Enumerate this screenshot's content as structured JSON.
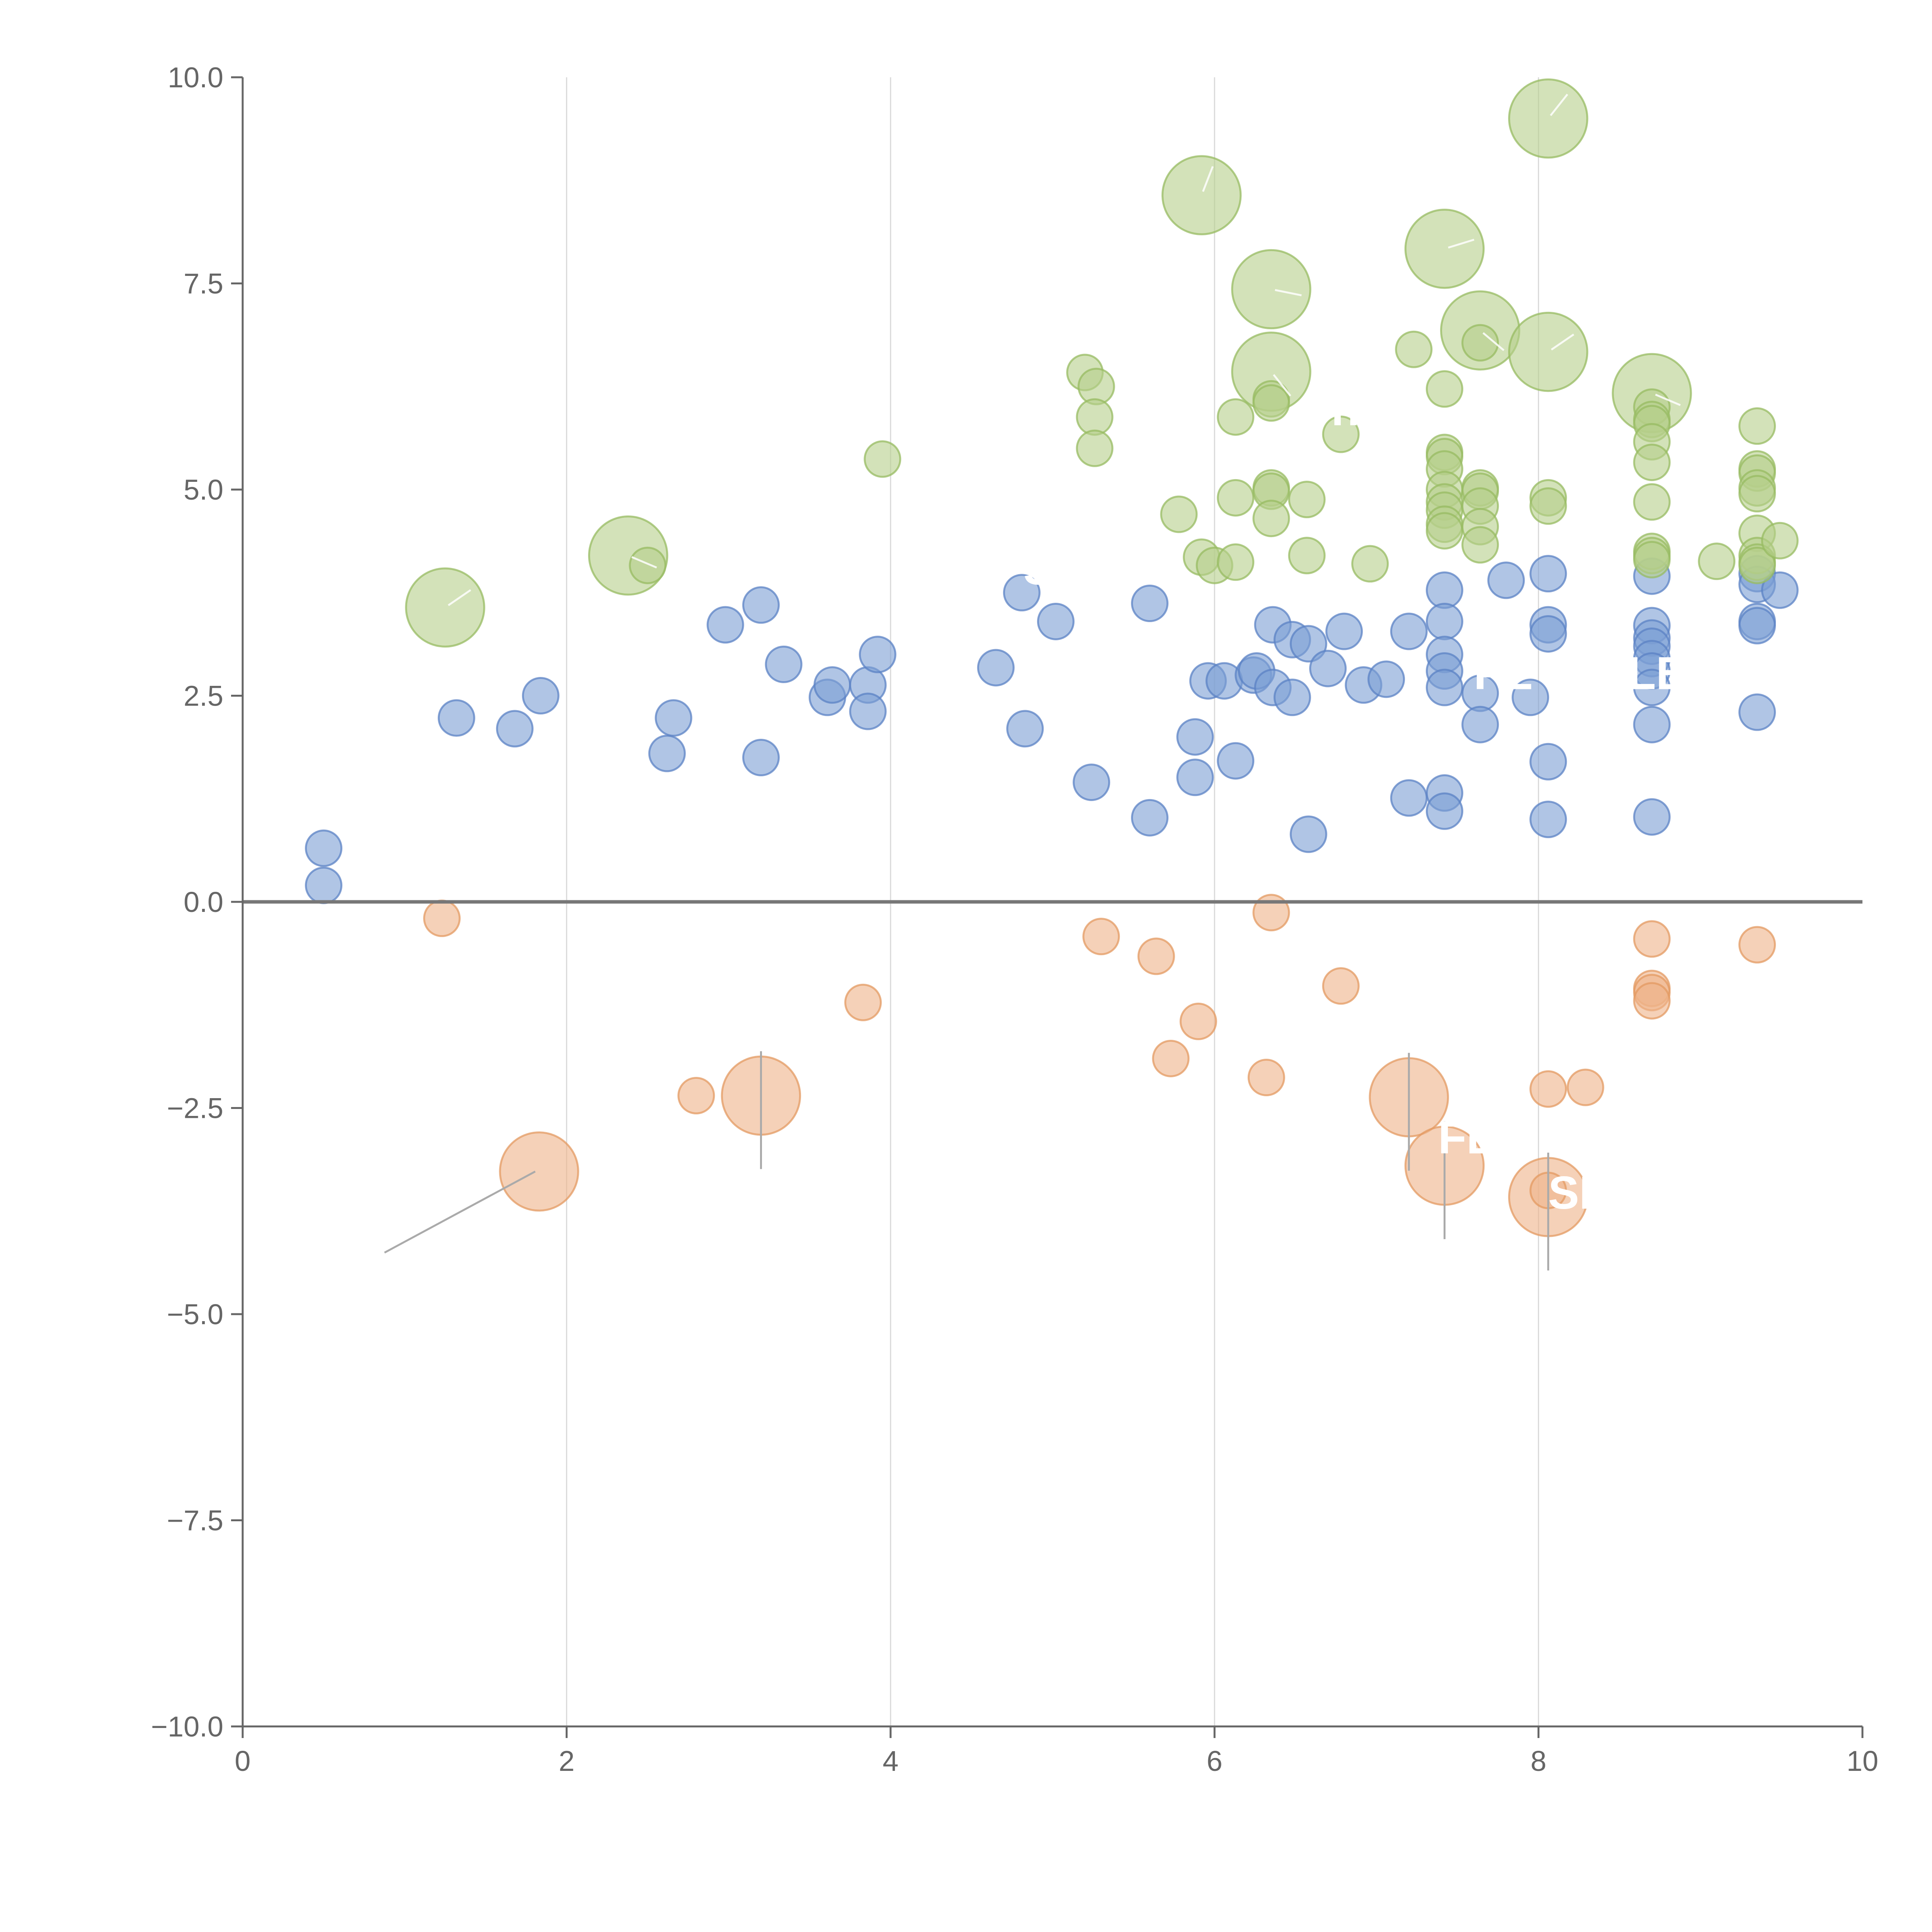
{
  "chart_data": {
    "type": "scatter",
    "title": "",
    "xlabel": "",
    "ylabel": "",
    "xlim": [
      0,
      10
    ],
    "ylim": [
      -10,
      10
    ],
    "x_ticks": [
      0,
      2,
      4,
      6,
      8,
      10
    ],
    "y_ticks": [
      -10,
      -7.5,
      -5,
      -2.5,
      0,
      2.5,
      5,
      7.5,
      10
    ],
    "x_tick_labels": [
      "0",
      "2",
      "4",
      "6",
      "8",
      "10"
    ],
    "y_tick_labels": [
      "−10.0",
      "−7.5",
      "−5.0",
      "−2.5",
      "0.0",
      "2.5",
      "5.0",
      "7.5",
      "10.0"
    ],
    "grid": "x",
    "legend": "none",
    "series": [
      {
        "name": "blue",
        "color": "#7b9fd4",
        "stroke": "#5b82c4",
        "points": [
          [
            0.5,
            0.65,
            1
          ],
          [
            0.5,
            0.2,
            1
          ],
          [
            1.32,
            2.23,
            1
          ],
          [
            1.68,
            2.1,
            1
          ],
          [
            1.84,
            2.5,
            1
          ],
          [
            2.62,
            1.8,
            1
          ],
          [
            2.66,
            2.23,
            1
          ],
          [
            2.98,
            3.36,
            1
          ],
          [
            3.2,
            3.6,
            1
          ],
          [
            3.2,
            1.75,
            1
          ],
          [
            3.34,
            2.88,
            1
          ],
          [
            3.61,
            2.48,
            1
          ],
          [
            3.64,
            2.63,
            1
          ],
          [
            3.86,
            2.63,
            1
          ],
          [
            3.86,
            2.31,
            1
          ],
          [
            3.92,
            3.0,
            1
          ],
          [
            4.65,
            2.84,
            1
          ],
          [
            4.81,
            3.75,
            1
          ],
          [
            4.83,
            2.1,
            1
          ],
          [
            5.02,
            3.4,
            1
          ],
          [
            5.24,
            1.45,
            1
          ],
          [
            5.6,
            1.02,
            1
          ],
          [
            5.6,
            3.62,
            1
          ],
          [
            5.88,
            2.0,
            1
          ],
          [
            5.88,
            1.51,
            1
          ],
          [
            5.96,
            2.68,
            1
          ],
          [
            6.06,
            2.68,
            1
          ],
          [
            6.13,
            1.71,
            1
          ],
          [
            6.24,
            2.75,
            1
          ],
          [
            6.26,
            2.8,
            1
          ],
          [
            6.36,
            3.36,
            1
          ],
          [
            6.36,
            2.6,
            1
          ],
          [
            6.48,
            3.18,
            1
          ],
          [
            6.48,
            2.48,
            1
          ],
          [
            6.58,
            3.13,
            1
          ],
          [
            6.58,
            0.82,
            1
          ],
          [
            6.7,
            2.83,
            1
          ],
          [
            6.8,
            3.28,
            1
          ],
          [
            6.92,
            2.63,
            1
          ],
          [
            7.06,
            2.7,
            1
          ],
          [
            7.2,
            3.28,
            1
          ],
          [
            7.2,
            1.26,
            1
          ],
          [
            7.42,
            3.78,
            1
          ],
          [
            7.42,
            3.4,
            1
          ],
          [
            7.42,
            3.0,
            1
          ],
          [
            7.42,
            2.8,
            1
          ],
          [
            7.42,
            2.6,
            1
          ],
          [
            7.42,
            1.32,
            1
          ],
          [
            7.42,
            1.1,
            1
          ],
          [
            7.64,
            2.53,
            1
          ],
          [
            7.64,
            2.15,
            1
          ],
          [
            7.8,
            3.9,
            1
          ],
          [
            7.95,
            2.48,
            1
          ],
          [
            8.06,
            3.98,
            1
          ],
          [
            8.06,
            3.36,
            1
          ],
          [
            8.06,
            3.25,
            1
          ],
          [
            8.06,
            1.7,
            1
          ],
          [
            8.06,
            1.0,
            1
          ],
          [
            8.7,
            3.95,
            1
          ],
          [
            8.7,
            3.35,
            1
          ],
          [
            8.7,
            3.2,
            1
          ],
          [
            8.7,
            3.1,
            1
          ],
          [
            8.7,
            2.95,
            1
          ],
          [
            8.7,
            2.8,
            1
          ],
          [
            8.7,
            2.6,
            1
          ],
          [
            8.7,
            2.15,
            1
          ],
          [
            8.7,
            1.03,
            1
          ],
          [
            9.35,
            3.98,
            1
          ],
          [
            9.35,
            3.85,
            1
          ],
          [
            9.35,
            3.4,
            1
          ],
          [
            9.35,
            3.35,
            1
          ],
          [
            9.35,
            2.3,
            1
          ],
          [
            9.49,
            3.78,
            1
          ]
        ]
      },
      {
        "name": "green",
        "color": "#b5cf8a",
        "stroke": "#97bb62",
        "points": [
          [
            1.25,
            3.57,
            2.2
          ],
          [
            2.38,
            4.2,
            2.2
          ],
          [
            2.5,
            4.08,
            1
          ],
          [
            3.95,
            5.37,
            1
          ],
          [
            5.2,
            6.42,
            1
          ],
          [
            5.27,
            6.25,
            1
          ],
          [
            5.26,
            5.88,
            1
          ],
          [
            5.26,
            5.5,
            1
          ],
          [
            5.78,
            4.7,
            1
          ],
          [
            5.92,
            8.57,
            2.2
          ],
          [
            5.92,
            4.18,
            1
          ],
          [
            6.0,
            4.08,
            1
          ],
          [
            6.13,
            5.88,
            1
          ],
          [
            6.13,
            4.9,
            1
          ],
          [
            6.13,
            4.12,
            1
          ],
          [
            6.35,
            7.43,
            2.2
          ],
          [
            6.35,
            6.43,
            2.2
          ],
          [
            6.35,
            6.1,
            1
          ],
          [
            6.35,
            6.05,
            1
          ],
          [
            6.35,
            5.02,
            1
          ],
          [
            6.35,
            4.98,
            1
          ],
          [
            6.35,
            4.65,
            1
          ],
          [
            6.57,
            4.88,
            1
          ],
          [
            6.57,
            4.2,
            1
          ],
          [
            6.78,
            5.67,
            1
          ],
          [
            6.96,
            4.1,
            1
          ],
          [
            7.23,
            6.7,
            1
          ],
          [
            7.42,
            7.92,
            2.2
          ],
          [
            7.42,
            6.22,
            1
          ],
          [
            7.42,
            5.45,
            1
          ],
          [
            7.42,
            5.4,
            1
          ],
          [
            7.42,
            5.25,
            1
          ],
          [
            7.42,
            5.0,
            1
          ],
          [
            7.42,
            4.85,
            1
          ],
          [
            7.42,
            4.75,
            1
          ],
          [
            7.42,
            4.58,
            1
          ],
          [
            7.42,
            4.5,
            1
          ],
          [
            7.64,
            6.93,
            2.2
          ],
          [
            7.64,
            6.78,
            1
          ],
          [
            7.64,
            5.02,
            1
          ],
          [
            7.64,
            4.98,
            1
          ],
          [
            7.64,
            4.8,
            1
          ],
          [
            7.64,
            4.55,
            1
          ],
          [
            7.64,
            4.33,
            1
          ],
          [
            8.06,
            9.5,
            2.2
          ],
          [
            8.06,
            6.67,
            2.2
          ],
          [
            8.06,
            4.9,
            1
          ],
          [
            8.06,
            4.8,
            1
          ],
          [
            8.7,
            6.17,
            2.2
          ],
          [
            8.7,
            6.0,
            1
          ],
          [
            8.7,
            5.85,
            1
          ],
          [
            8.7,
            5.8,
            1
          ],
          [
            8.7,
            5.58,
            1
          ],
          [
            8.7,
            5.33,
            1
          ],
          [
            8.7,
            4.85,
            1
          ],
          [
            8.7,
            4.25,
            1
          ],
          [
            8.7,
            4.2,
            1
          ],
          [
            8.7,
            4.15,
            1
          ],
          [
            9.1,
            4.13,
            1
          ],
          [
            9.35,
            5.77,
            1
          ],
          [
            9.35,
            5.25,
            1
          ],
          [
            9.35,
            5.2,
            1
          ],
          [
            9.35,
            5.02,
            1
          ],
          [
            9.35,
            4.95,
            1
          ],
          [
            9.35,
            4.47,
            1
          ],
          [
            9.35,
            4.2,
            1
          ],
          [
            9.35,
            4.12,
            1
          ],
          [
            9.35,
            4.08,
            1
          ],
          [
            9.49,
            4.38,
            1
          ]
        ]
      },
      {
        "name": "orange",
        "color": "#efb288",
        "stroke": "#e39a62",
        "points": [
          [
            1.23,
            -0.2,
            1
          ],
          [
            1.83,
            -3.27,
            2.2
          ],
          [
            2.8,
            -2.35,
            1
          ],
          [
            3.2,
            -2.35,
            2.2
          ],
          [
            3.83,
            -1.22,
            1
          ],
          [
            5.3,
            -0.42,
            1
          ],
          [
            5.64,
            -0.66,
            1
          ],
          [
            5.73,
            -1.9,
            1
          ],
          [
            5.9,
            -1.45,
            1
          ],
          [
            6.32,
            -2.13,
            1
          ],
          [
            6.35,
            -0.13,
            1
          ],
          [
            6.78,
            -1.02,
            1
          ],
          [
            7.2,
            -2.37,
            2.2
          ],
          [
            7.42,
            -3.2,
            2.2
          ],
          [
            8.06,
            -3.58,
            2.2
          ],
          [
            8.06,
            -3.5,
            1
          ],
          [
            8.06,
            -2.27,
            1
          ],
          [
            8.29,
            -2.25,
            1
          ],
          [
            8.7,
            -0.45,
            1
          ],
          [
            8.7,
            -1.05,
            1
          ],
          [
            8.7,
            -1.1,
            1
          ],
          [
            8.7,
            -1.2,
            1
          ],
          [
            9.35,
            -0.52,
            1
          ]
        ]
      }
    ],
    "annotations": [
      {
        "text": "S",
        "x": 4.82,
        "y": 3.85
      },
      {
        "text": "n",
        "x": 6.72,
        "y": 5.78
      },
      {
        "text": "FE",
        "x": 7.6,
        "y": 2.58
      },
      {
        "text": "LB",
        "x": 8.55,
        "y": 2.58
      },
      {
        "text": "FLU",
        "x": 7.38,
        "y": -3.05
      },
      {
        "text": "SL",
        "x": 8.06,
        "y": -3.72
      }
    ]
  }
}
